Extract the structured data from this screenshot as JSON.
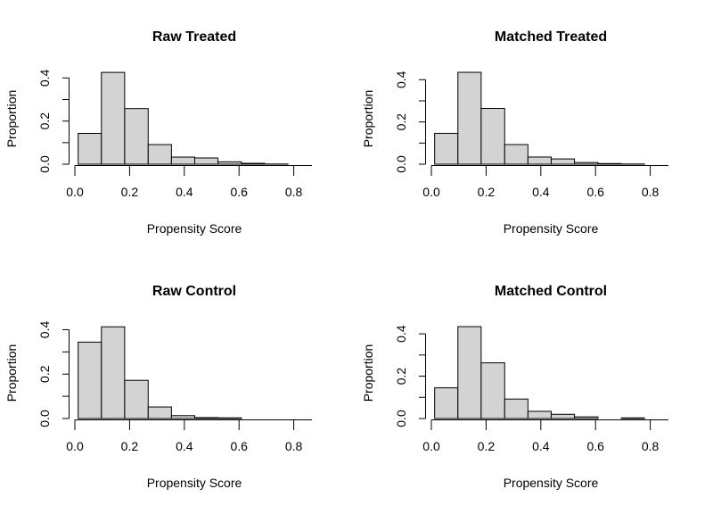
{
  "chart_data": [
    {
      "type": "bar",
      "title": "Raw Treated",
      "xlabel": "Propensity Score",
      "ylabel": "Proportion",
      "bin_edges": [
        0.012,
        0.097,
        0.182,
        0.268,
        0.353,
        0.438,
        0.523,
        0.609,
        0.694,
        0.779
      ],
      "values": [
        0.143,
        0.426,
        0.258,
        0.091,
        0.033,
        0.029,
        0.011,
        0.004,
        0.001
      ],
      "xticks": [
        "0.0",
        "0.2",
        "0.4",
        "0.6",
        "0.8"
      ],
      "yticks": [
        "0.0",
        "0.2",
        "0.4"
      ],
      "xlim": [
        0,
        0.85
      ],
      "ylim": [
        0,
        0.443
      ],
      "bar_color": "#d3d3d3"
    },
    {
      "type": "bar",
      "title": "Matched Treated",
      "xlabel": "Propensity Score",
      "ylabel": "Proportion",
      "bin_edges": [
        0.012,
        0.097,
        0.182,
        0.268,
        0.353,
        0.438,
        0.523,
        0.609,
        0.694,
        0.779
      ],
      "values": [
        0.146,
        0.435,
        0.264,
        0.093,
        0.034,
        0.025,
        0.008,
        0.003,
        0.001
      ],
      "xticks": [
        "0.0",
        "0.2",
        "0.4",
        "0.6",
        "0.8"
      ],
      "yticks": [
        "0.0",
        "0.2",
        "0.4"
      ],
      "xlim": [
        0,
        0.85
      ],
      "ylim": [
        0,
        0.452
      ],
      "bar_color": "#d3d3d3"
    },
    {
      "type": "bar",
      "title": "Raw Control",
      "xlabel": "Propensity Score",
      "ylabel": "Proportion",
      "bin_edges": [
        0.012,
        0.097,
        0.182,
        0.268,
        0.353,
        0.438,
        0.523,
        0.609,
        0.694,
        0.779
      ],
      "values": [
        0.344,
        0.413,
        0.172,
        0.052,
        0.013,
        0.004,
        0.003,
        0.0,
        0.0
      ],
      "xticks": [
        "0.0",
        "0.2",
        "0.4",
        "0.6",
        "0.8"
      ],
      "yticks": [
        "0.0",
        "0.2",
        "0.4"
      ],
      "xlim": [
        0,
        0.85
      ],
      "ylim": [
        0,
        0.43
      ],
      "bar_color": "#d3d3d3"
    },
    {
      "type": "bar",
      "title": "Matched Control",
      "xlabel": "Propensity Score",
      "ylabel": "Proportion",
      "bin_edges": [
        0.012,
        0.097,
        0.182,
        0.268,
        0.353,
        0.438,
        0.523,
        0.609,
        0.694,
        0.779
      ],
      "values": [
        0.145,
        0.434,
        0.263,
        0.092,
        0.034,
        0.02,
        0.008,
        0.0,
        0.003
      ],
      "xticks": [
        "0.0",
        "0.2",
        "0.4",
        "0.6",
        "0.8"
      ],
      "yticks": [
        "0.0",
        "0.2",
        "0.4"
      ],
      "xlim": [
        0,
        0.85
      ],
      "ylim": [
        0,
        0.451
      ],
      "bar_color": "#d3d3d3"
    }
  ]
}
